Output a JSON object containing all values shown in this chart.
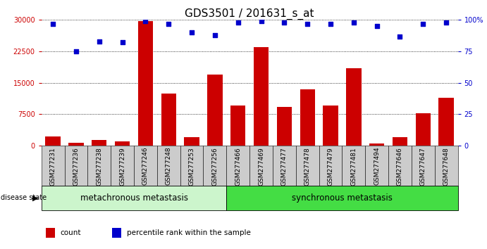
{
  "title": "GDS3501 / 201631_s_at",
  "samples": [
    "GSM277231",
    "GSM277236",
    "GSM277238",
    "GSM277239",
    "GSM277246",
    "GSM277248",
    "GSM277253",
    "GSM277256",
    "GSM277466",
    "GSM277469",
    "GSM277477",
    "GSM277478",
    "GSM277479",
    "GSM277481",
    "GSM277494",
    "GSM277646",
    "GSM277647",
    "GSM277648"
  ],
  "counts": [
    2200,
    700,
    1300,
    1100,
    29800,
    12500,
    2000,
    17000,
    9500,
    23500,
    9200,
    13500,
    9500,
    18500,
    500,
    2000,
    7800,
    11500
  ],
  "percentiles": [
    97,
    75,
    83,
    82,
    99,
    97,
    90,
    88,
    98,
    99,
    98,
    97,
    97,
    98,
    95,
    87,
    97,
    98
  ],
  "group1_label": "metachronous metastasis",
  "group2_label": "synchronous metastasis",
  "group1_count": 8,
  "group2_count": 10,
  "bar_color": "#cc0000",
  "dot_color": "#0000cc",
  "bg_color": "#ffffff",
  "left_yaxis_color": "#cc0000",
  "right_yaxis_color": "#0000cc",
  "ylim_left": [
    0,
    30000
  ],
  "left_yticks": [
    0,
    7500,
    15000,
    22500,
    30000
  ],
  "right_yticks": [
    0,
    25,
    50,
    75,
    100
  ],
  "right_yticklabels": [
    "0",
    "25",
    "50",
    "75",
    "100%"
  ],
  "title_fontsize": 11,
  "tick_fontsize": 7,
  "xtick_fontsize": 6.5,
  "label_fontsize": 8.5,
  "group_bg_color1": "#ccf5cc",
  "group_bg_color2": "#44dd44",
  "sample_box_color": "#cccccc",
  "legend_square_size": 8
}
